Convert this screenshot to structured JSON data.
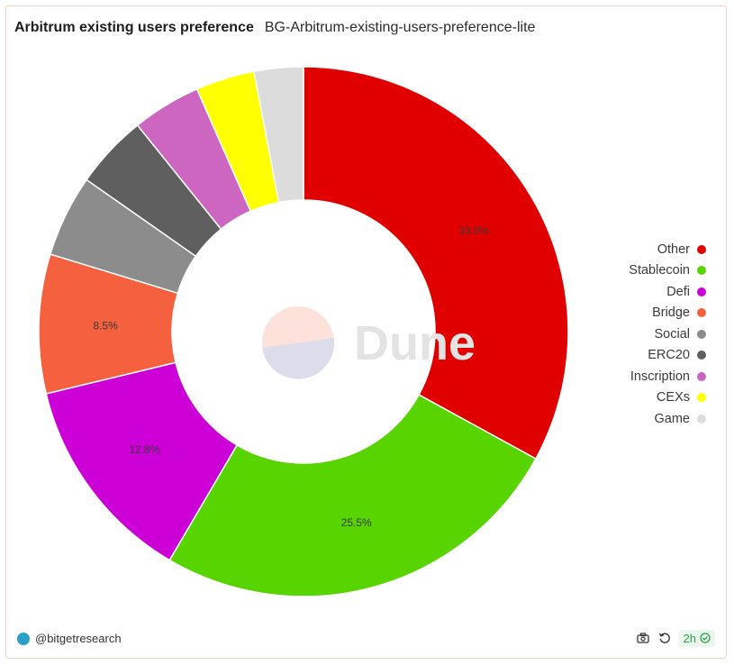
{
  "header": {
    "title": "Arbitrum existing users preference",
    "subtitle": "BG-Arbitrum-existing-users-preference-lite"
  },
  "watermark": "Dune",
  "chart_data": {
    "type": "pie",
    "title": "Arbitrum existing users preference",
    "categories": [
      "Other",
      "Stablecoin",
      "Defi",
      "Bridge",
      "Social",
      "ERC20",
      "Inscription",
      "CEXs",
      "Game"
    ],
    "values": [
      33.0,
      25.5,
      12.8,
      8.5,
      5.0,
      4.5,
      4.2,
      3.6,
      3.0
    ],
    "colors": [
      "#e10000",
      "#58d400",
      "#cc00d6",
      "#f5613f",
      "#8c8c8c",
      "#5f5f5f",
      "#cc66c0",
      "#ffff00",
      "#dcdcdc"
    ],
    "data_labels": [
      "33.0%",
      "25.5%",
      "12.8%",
      "8.5%",
      "",
      "",
      "",
      "",
      ""
    ],
    "donut": true,
    "legend_position": "right"
  },
  "footer": {
    "author": "@bitgetresearch",
    "refresh": "2h"
  }
}
